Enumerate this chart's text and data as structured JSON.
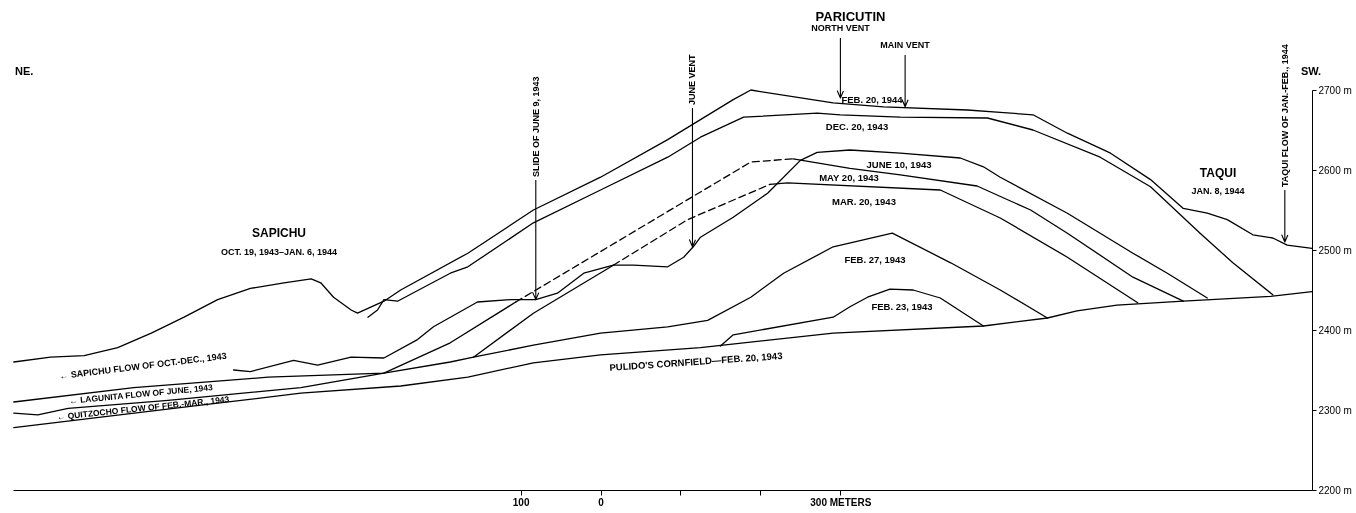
{
  "chart_data": {
    "type": "line",
    "title": "PARICUTIN",
    "xlim": [
      -735,
      890
    ],
    "ylim": [
      2200,
      2700
    ],
    "xticks": [
      {
        "value": -100,
        "label": "100"
      },
      0,
      {
        "value": 100,
        "label": null
      },
      {
        "value": 200,
        "label": null
      },
      {
        "value": 300,
        "label": "300 METERS"
      }
    ],
    "yticks": [
      {
        "value": 2200,
        "label": "2200 m"
      },
      {
        "value": 2300,
        "label": "2300 m"
      },
      {
        "value": 2400,
        "label": "2400 m"
      },
      {
        "value": 2500,
        "label": "2500 m"
      },
      {
        "value": 2600,
        "label": "2600 m"
      },
      {
        "value": 2700,
        "label": "2700 m"
      }
    ],
    "series": [
      {
        "color": "#000000",
        "line_style": "solid",
        "x": [
          -734,
          -688,
          -646,
          -604,
          -562,
          -521,
          -479,
          -438,
          -396,
          -362,
          -350,
          -334,
          -312,
          -304,
          -271,
          -250,
          -166,
          -84,
          0,
          84,
          166,
          188,
          200,
          291,
          354,
          459,
          500,
          541,
          584,
          638,
          688,
          729,
          759,
          784,
          816,
          841,
          859,
          890
        ],
        "values": [
          2360,
          2366,
          2368,
          2378,
          2396,
          2416,
          2438,
          2452,
          2459,
          2464,
          2459,
          2441,
          2425,
          2421,
          2436,
          2450,
          2496,
          2550,
          2591,
          2638,
          2688,
          2700,
          2698,
          2684,
          2679,
          2675,
          2672,
          2669,
          2646,
          2621,
          2588,
          2552,
          2546,
          2538,
          2519,
          2515,
          2506,
          2502
        ]
      },
      {
        "color": "#000000",
        "line_style": "solid",
        "x": [
          -291,
          -279,
          -271,
          -254,
          -188,
          -166,
          -84,
          0,
          84,
          125,
          179,
          271,
          300,
          375,
          484,
          541,
          625,
          688,
          750,
          791,
          841
        ],
        "values": [
          2416,
          2425,
          2438,
          2436,
          2471,
          2479,
          2534,
          2575,
          2616,
          2641,
          2666,
          2671,
          2669,
          2666,
          2665,
          2650,
          2616,
          2579,
          2521,
          2484,
          2444
        ]
      },
      {
        "color": "#000000",
        "line_style": "solid",
        "x": [
          -734,
          -625,
          -500,
          -375,
          -250,
          -166,
          -84,
          0,
          125,
          291,
          479,
          559,
          596,
          646,
          729,
          838,
          890
        ],
        "values": [
          2278,
          2291,
          2306,
          2321,
          2330,
          2341,
          2359,
          2369,
          2378,
          2396,
          2405,
          2415,
          2424,
          2431,
          2436,
          2442,
          2448
        ]
      },
      {
        "color": "#000000",
        "line_style": "solid",
        "x": [
          150,
          166,
          291,
          312,
          334,
          362,
          391,
          425,
          479
        ],
        "values": [
          2380,
          2394,
          2416,
          2429,
          2441,
          2451,
          2450,
          2440,
          2405
        ]
      },
      {
        "color": "#000000",
        "line_style": "solid",
        "x": [
          -734,
          -704,
          -666,
          -541,
          -375,
          -271,
          -188,
          -159,
          -84,
          0,
          84,
          134,
          188,
          229,
          291,
          365,
          438,
          500,
          559
        ],
        "values": [
          2296,
          2294,
          2302,
          2312,
          2328,
          2346,
          2360,
          2366,
          2381,
          2396,
          2404,
          2412,
          2441,
          2471,
          2504,
          2521,
          2484,
          2450,
          2415
        ]
      },
      {
        "color": "#000000",
        "line_style": "solid",
        "x": [
          -734,
          -584,
          -416,
          -271,
          -188,
          -106
        ],
        "values": [
          2310,
          2328,
          2341,
          2346,
          2384,
          2435
        ]
      },
      {
        "color": "#000000",
        "line_style": "dashed",
        "x": [
          -106,
          188,
          241
        ],
        "values": [
          2435,
          2610,
          2614
        ]
      },
      {
        "color": "#000000",
        "line_style": "solid",
        "x": [
          241,
          312,
          375,
          471,
          538,
          584,
          666,
          729
        ],
        "values": [
          2614,
          2602,
          2594,
          2580,
          2550,
          2521,
          2466,
          2436
        ]
      },
      {
        "color": "#000000",
        "line_style": "solid",
        "x": [
          -159,
          -84,
          16
        ],
        "values": [
          2366,
          2421,
          2481
        ]
      },
      {
        "color": "#000000",
        "line_style": "dashed",
        "x": [
          16,
          109,
          212
        ],
        "values": [
          2481,
          2538,
          2582
        ]
      },
      {
        "color": "#000000",
        "line_style": "solid",
        "x": [
          212,
          234,
          425,
          500,
          584,
          672
        ],
        "values": [
          2582,
          2584,
          2575,
          2540,
          2491,
          2434
        ]
      },
      {
        "color": "#000000",
        "line_style": "solid",
        "x": [
          -459,
          -438,
          -384,
          -354,
          -312,
          -271,
          -229,
          -209,
          -154,
          -112,
          -81,
          -54,
          -21,
          16,
          41,
          84,
          104,
          116,
          125,
          166,
          209,
          250,
          271,
          312,
          375,
          450,
          479,
          500,
          584,
          666,
          709,
          759
        ],
        "values": [
          2350,
          2348,
          2362,
          2356,
          2366,
          2365,
          2388,
          2404,
          2435,
          2438,
          2438,
          2446,
          2471,
          2481,
          2481,
          2479,
          2491,
          2504,
          2516,
          2541,
          2571,
          2612,
          2622,
          2625,
          2621,
          2615,
          2604,
          2591,
          2546,
          2496,
          2471,
          2440
        ]
      }
    ],
    "annotations": [
      "NE.",
      "SW.",
      "SAPICHU",
      "OCT. 19, 1943–JAN. 6, 1944",
      {
        "text": "SLIDE OF JUNE 9, 1943",
        "x": -81,
        "y": 2438
      },
      {
        "text": "JUNE VENT",
        "x": 115,
        "y": 2504
      },
      "NORTH VENT",
      {
        "text": "MAIN VENT",
        "x": 381,
        "y": 2679
      },
      "TAQUI",
      "JAN. 8, 1944",
      {
        "text": "TAQUI FLOW OF JAN.-FEB., 1944",
        "x": 856,
        "y": 2510
      },
      "FEB. 20, 1944",
      "DEC. 20, 1943",
      "JUNE 10, 1943",
      "MAY 20, 1943",
      "MAR. 20, 1943",
      "FEB. 27, 1943",
      "FEB. 23, 1943",
      "PULIDO'S CORNFIELD—FEB. 20, 1943",
      "← SAPICHU FLOW OF OCT.-DEC., 1943",
      "← LAGUNITA FLOW OF JUNE, 1943",
      "← QUITZOCHO FLOW OF FEB.-MAR., 1943"
    ]
  }
}
